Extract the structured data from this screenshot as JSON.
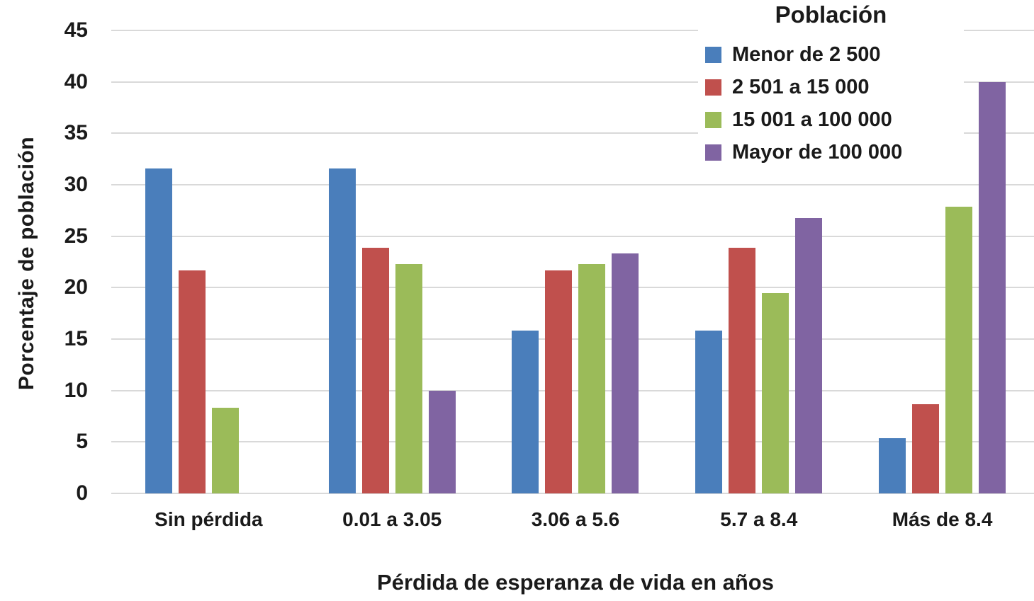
{
  "chart_data": {
    "type": "bar",
    "title": "",
    "legend_title": "Población",
    "legend_position": "top-right",
    "xlabel": "Pérdida de esperanza de vida en años",
    "ylabel": "Porcentaje de población",
    "categories": [
      "Sin pérdida",
      "0.01 a 3.05",
      "3.06 a 5.6",
      "5.7 a 8.4",
      "Más de 8.4"
    ],
    "series": [
      {
        "name": "Menor de 2 500",
        "color": "#4A7EBB",
        "values": [
          31.6,
          31.6,
          15.8,
          15.8,
          5.4
        ]
      },
      {
        "name": "2 501 a 15 000",
        "color": "#C0504D",
        "values": [
          21.7,
          23.9,
          21.7,
          23.9,
          8.7
        ]
      },
      {
        "name": "15 001 a 100 000",
        "color": "#9BBB59",
        "values": [
          8.3,
          22.3,
          22.3,
          19.5,
          27.9
        ]
      },
      {
        "name": "Mayor de 100 000",
        "color": "#8064A2",
        "values": [
          0,
          10.0,
          23.3,
          26.8,
          40.0
        ]
      }
    ],
    "ylim": [
      0,
      45
    ],
    "yticks": [
      0,
      5,
      10,
      15,
      20,
      25,
      30,
      35,
      40,
      45
    ],
    "grid": "horizontal"
  },
  "colors": {
    "background": "#FFFFFF",
    "gridline": "#D9D9D9",
    "text": "#1A1A1A"
  }
}
